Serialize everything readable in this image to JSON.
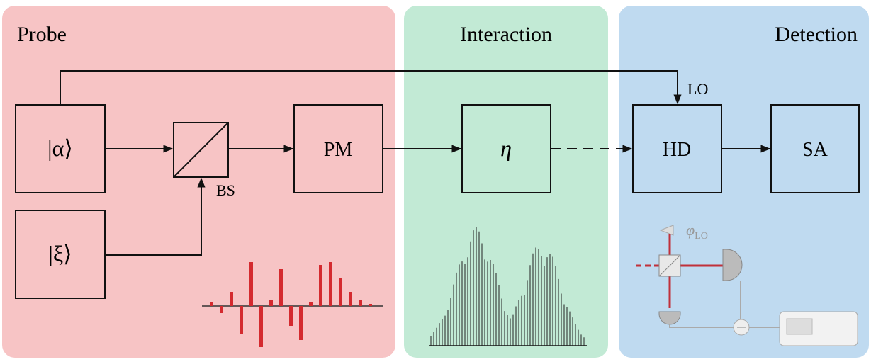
{
  "panels": [
    {
      "title": "Probe"
    },
    {
      "title": "Interaction"
    },
    {
      "title": "Detection"
    }
  ],
  "nodes": [
    {
      "label": "|α⟩"
    },
    {
      "label": "|ξ⟩"
    },
    {
      "label": "BS"
    },
    {
      "label": "PM"
    },
    {
      "label": "η"
    },
    {
      "label": "HD"
    },
    {
      "label": "SA"
    }
  ],
  "edges": [
    {
      "label": "LO"
    }
  ],
  "phase": {
    "symbol": "φ",
    "subscript": "LO"
  }
}
